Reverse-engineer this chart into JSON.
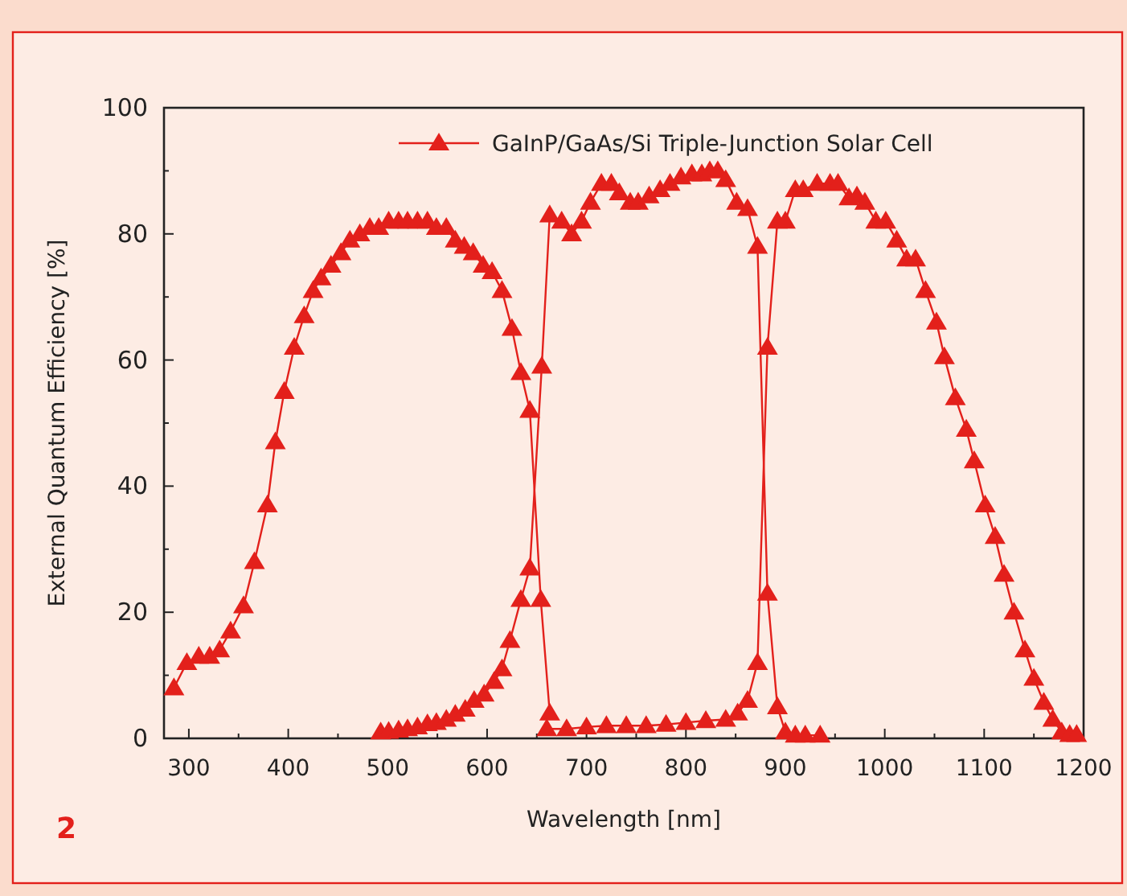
{
  "chart_data": {
    "type": "line",
    "xlabel": "Wavelength [nm]",
    "ylabel": "External Quantum Efficiency [%]",
    "xlim": [
      275,
      1200
    ],
    "ylim": [
      0,
      100
    ],
    "xticks": [
      300,
      400,
      500,
      600,
      700,
      800,
      900,
      1000,
      1100,
      1200
    ],
    "yticks": [
      0,
      20,
      40,
      60,
      80,
      100
    ],
    "grid": false,
    "legend": "top",
    "marker": "triangle",
    "line_style": "solid",
    "annotations": [
      "2"
    ],
    "series": [
      {
        "name": "GaInP/GaAs/Si Triple-Junction Solar Cell",
        "color": "#e3201b",
        "x": [
          285,
          298,
          310,
          321,
          331,
          342,
          355,
          366,
          379,
          387,
          396,
          406,
          416,
          425,
          433,
          443,
          453,
          462,
          472,
          482,
          491,
          501,
          511,
          520,
          530,
          540,
          549,
          559,
          568,
          577,
          586,
          596,
          605,
          615,
          625,
          634,
          643,
          654,
          663
        ],
        "values": [
          8,
          12,
          13,
          13,
          14,
          17,
          21,
          28,
          37,
          47,
          55,
          62,
          67,
          71,
          73,
          75,
          77,
          79,
          80,
          81,
          81,
          82,
          82,
          82,
          82,
          82,
          81,
          81,
          79,
          78,
          77,
          75,
          74,
          71,
          65,
          58,
          52,
          22,
          4
        ]
      },
      {
        "color": "#e3201b",
        "x": [
          493,
          501,
          511,
          520,
          530,
          540,
          549,
          559,
          568,
          578,
          587,
          597,
          607,
          615,
          623,
          634,
          643,
          655,
          663,
          675,
          685,
          695,
          704,
          715,
          725,
          733,
          744,
          752,
          763,
          774,
          784,
          795,
          806,
          816,
          824,
          832,
          840,
          851,
          862,
          872,
          882,
          892,
          900,
          910,
          920,
          935
        ],
        "values": [
          1,
          1.1,
          1.3,
          1.5,
          1.8,
          2.3,
          2.5,
          3,
          3.8,
          4.6,
          6,
          7,
          9,
          11,
          15.5,
          22,
          27,
          59,
          83,
          82,
          80,
          82,
          85,
          88,
          88,
          86.5,
          85,
          85,
          86,
          87,
          88,
          89,
          89.5,
          89.5,
          90,
          90,
          88.6,
          85,
          84,
          78,
          23,
          5,
          1,
          0.5,
          0.5,
          0.5
        ]
      },
      {
        "color": "#e3201b",
        "x": [
          660,
          680,
          700,
          720,
          740,
          760,
          780,
          800,
          820,
          840,
          852,
          862,
          872,
          882,
          892,
          900,
          910,
          918,
          932,
          945,
          953,
          964,
          972,
          980,
          991,
          1001,
          1012,
          1022,
          1031,
          1041,
          1052,
          1060,
          1071,
          1082,
          1090,
          1101,
          1111,
          1120,
          1130,
          1141,
          1150,
          1160,
          1169,
          1178,
          1186,
          1193
        ],
        "values": [
          1.5,
          1.5,
          1.8,
          2,
          2,
          2,
          2.2,
          2.5,
          2.8,
          3,
          4,
          6,
          12,
          62,
          82,
          82,
          87,
          87,
          88,
          88,
          88,
          85.7,
          86,
          85,
          82,
          82,
          79,
          76,
          76,
          71,
          66,
          60.5,
          54,
          49,
          44,
          37,
          32,
          26,
          20,
          14,
          9.5,
          5.7,
          3,
          1,
          0.6,
          0.6
        ]
      }
    ]
  }
}
